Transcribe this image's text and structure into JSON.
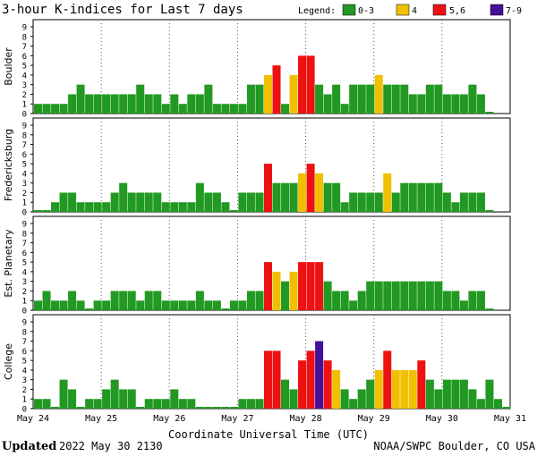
{
  "title": "3-hour K-indices for Last 7 days",
  "legend": {
    "label": "Legend:",
    "items": [
      {
        "label": "0-3",
        "color": "#229922"
      },
      {
        "label": "4",
        "color": "#f0c000"
      },
      {
        "label": "5,6",
        "color": "#ee1111"
      },
      {
        "label": "7-9",
        "color": "#441199"
      }
    ]
  },
  "footer": {
    "updated_label": "Updated",
    "updated_value": "2022 May 30 2130",
    "source": "NOAA/SWPC Boulder, CO USA"
  },
  "chart_data": {
    "type": "bar",
    "x_tick_labels": [
      "May 24",
      "May 25",
      "May 26",
      "May 27",
      "May 28",
      "May 29",
      "May 30",
      "May 31"
    ],
    "xlabel": "Coordinate Universal Time (UTC)",
    "ylim": [
      0,
      9
    ],
    "y_ticks": [
      0,
      1,
      2,
      3,
      4,
      5,
      6,
      7,
      8,
      9
    ],
    "grid": "dotted vertical at day boundaries",
    "bars_per_day": 8,
    "series": [
      {
        "name": "Boulder",
        "values": [
          1,
          1,
          1,
          1,
          2,
          3,
          2,
          2,
          2,
          2,
          2,
          2,
          3,
          2,
          2,
          1,
          2,
          1,
          2,
          2,
          3,
          1,
          1,
          1,
          1,
          3,
          3,
          4,
          5,
          1,
          4,
          6,
          6,
          3,
          2,
          3,
          1,
          3,
          3,
          3,
          4,
          3,
          3,
          3,
          2,
          2,
          3,
          3,
          2,
          2,
          2,
          3,
          2,
          0
        ]
      },
      {
        "name": "Fredericksburg",
        "values": [
          0,
          0,
          1,
          2,
          2,
          1,
          1,
          1,
          1,
          2,
          3,
          2,
          2,
          2,
          2,
          1,
          1,
          1,
          1,
          3,
          2,
          2,
          1,
          0,
          2,
          2,
          2,
          5,
          3,
          3,
          3,
          4,
          5,
          4,
          3,
          3,
          1,
          2,
          2,
          2,
          2,
          4,
          2,
          3,
          3,
          3,
          3,
          3,
          2,
          1,
          2,
          2,
          2,
          0
        ]
      },
      {
        "name": "Est. Planetary",
        "values": [
          1,
          2,
          1,
          1,
          2,
          1,
          0,
          1,
          1,
          2,
          2,
          2,
          1,
          2,
          2,
          1,
          1,
          1,
          1,
          2,
          1,
          1,
          0,
          1,
          1,
          2,
          2,
          5,
          4,
          3,
          4,
          5,
          5,
          5,
          3,
          2,
          2,
          1,
          2,
          3,
          3,
          3,
          3,
          3,
          3,
          3,
          3,
          3,
          2,
          2,
          1,
          2,
          2,
          0
        ]
      },
      {
        "name": "College",
        "values": [
          1,
          1,
          0,
          3,
          2,
          0,
          1,
          1,
          2,
          3,
          2,
          2,
          0,
          1,
          1,
          1,
          2,
          1,
          1,
          0,
          0,
          0,
          0,
          0,
          1,
          1,
          1,
          6,
          6,
          3,
          2,
          5,
          6,
          7,
          5,
          4,
          2,
          1,
          2,
          3,
          4,
          6,
          4,
          4,
          4,
          5,
          3,
          2,
          3,
          3,
          3,
          2,
          1,
          3,
          1,
          0
        ]
      }
    ]
  }
}
